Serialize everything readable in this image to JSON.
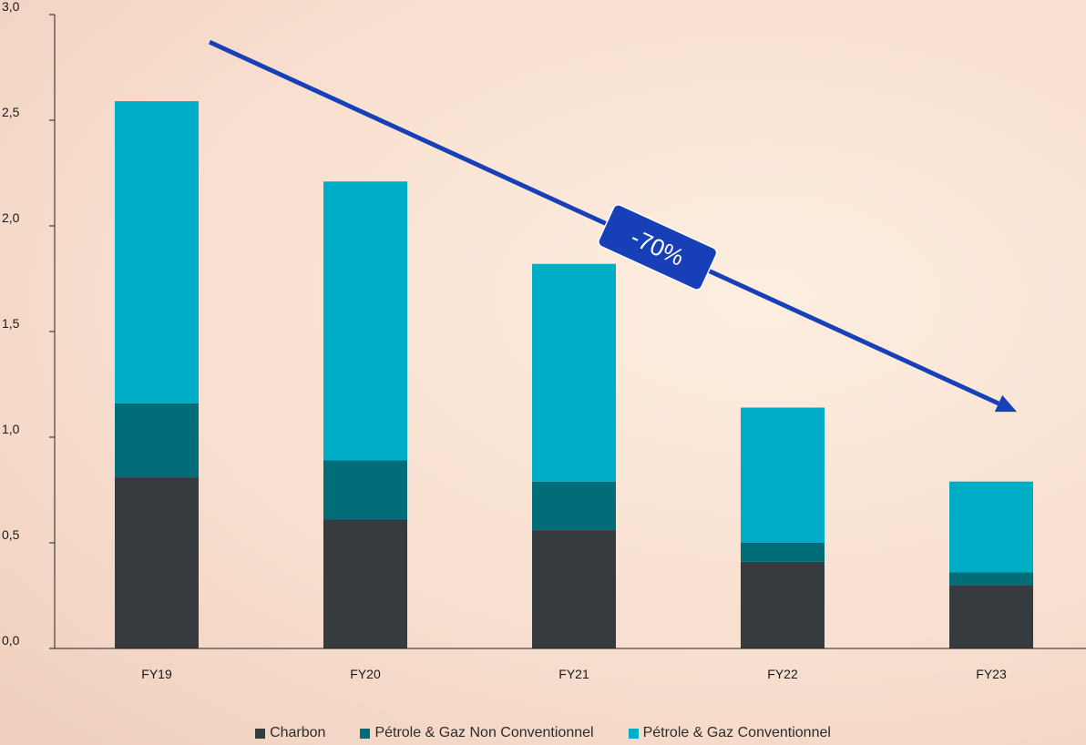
{
  "chart_data": {
    "type": "bar",
    "stacked": true,
    "categories": [
      "FY19",
      "FY20",
      "FY21",
      "FY22",
      "FY23"
    ],
    "series": [
      {
        "name": "Charbon",
        "color": "#353b3e",
        "values": [
          0.81,
          0.61,
          0.56,
          0.41,
          0.3
        ]
      },
      {
        "name": "Pétrole & Gaz Non Conventionnel",
        "color": "#006d78",
        "values": [
          0.35,
          0.28,
          0.23,
          0.09,
          0.06
        ]
      },
      {
        "name": "Pétrole & Gaz Conventionnel",
        "color": "#00adc6",
        "values": [
          1.43,
          1.32,
          1.03,
          0.64,
          0.43
        ]
      }
    ],
    "y_ticks": [
      "0,0",
      "0,5",
      "1,0",
      "1,5",
      "2,0",
      "2,5",
      "3,0"
    ],
    "ylim": [
      0,
      3.0
    ],
    "grid": false,
    "legend_position": "bottom",
    "annotation": {
      "text": "-70%",
      "color": "#1740b8",
      "from": [
        "FY19",
        2.87
      ],
      "to": [
        "FY23",
        1.12
      ]
    }
  }
}
